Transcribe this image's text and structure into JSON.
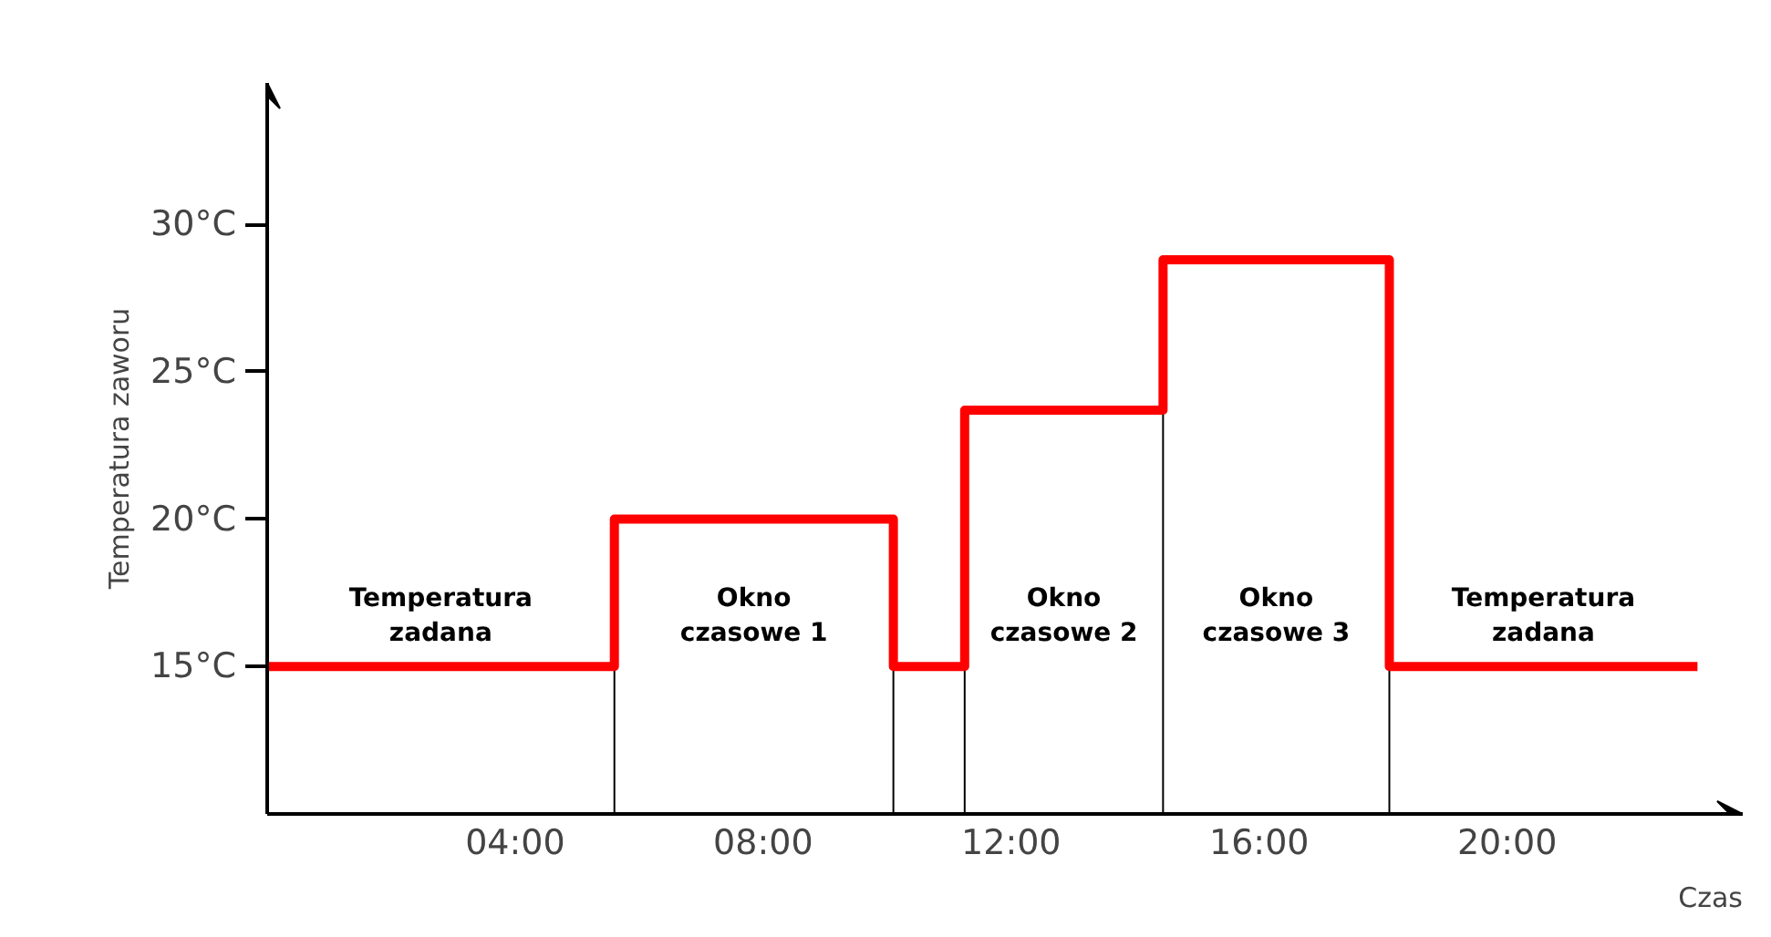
{
  "chart_data": {
    "type": "step",
    "xlabel": "Czas",
    "ylabel": "Temperatura zaworu",
    "x": [
      0,
      5.6,
      10.1,
      11.25,
      14.45,
      18.1,
      23.07
    ],
    "series": [
      {
        "color": "#ff0000",
        "values": [
          15,
          20,
          15,
          23.7,
          28.8,
          15,
          15
        ]
      }
    ],
    "xlim": [
      0,
      23.8
    ],
    "ylim": [
      10,
      34.8
    ],
    "xticks": [
      {
        "value": 4,
        "label": "04:00"
      },
      {
        "value": 8,
        "label": "08:00"
      },
      {
        "value": 12,
        "label": "12:00"
      },
      {
        "value": 16,
        "label": "16:00"
      },
      {
        "value": 20,
        "label": "20:00"
      }
    ],
    "yticks": [
      {
        "value": 15,
        "label": "15°C"
      },
      {
        "value": 20,
        "label": "20°C"
      },
      {
        "value": 25,
        "label": "25°C"
      },
      {
        "value": 30,
        "label": "30°C"
      }
    ],
    "ref_lines": [
      {
        "axis": "x",
        "value": 5.6,
        "color": "#000000"
      },
      {
        "axis": "x",
        "value": 10.1,
        "color": "#000000"
      },
      {
        "axis": "x",
        "value": 11.25,
        "color": "#000000"
      },
      {
        "axis": "x",
        "value": 14.45,
        "color": "#000000"
      },
      {
        "axis": "x",
        "value": 18.1,
        "color": "#000000"
      }
    ],
    "annotations": [
      "Temperatura\nzadana",
      "Okno\nczasowe 1",
      "Okno\nczasowe 2",
      "Okno\nczasowe 3",
      "Temperatura\nzadana"
    ],
    "grid": false,
    "marker": "none",
    "line_style": "solid"
  }
}
